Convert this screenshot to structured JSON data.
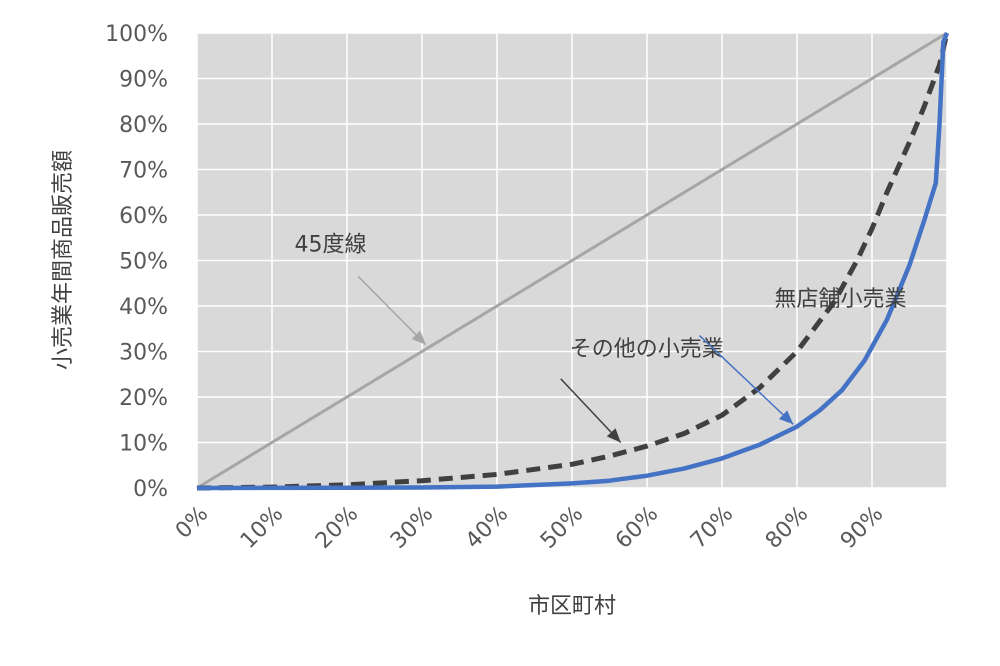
{
  "chart_data": {
    "type": "line",
    "xlabel": "市区町村",
    "ylabel": "小売業年間商品販売額",
    "xlim": [
      0,
      1
    ],
    "ylim": [
      0,
      1
    ],
    "x_ticks": [
      "0%",
      "10%",
      "20%",
      "30%",
      "40%",
      "50%",
      "60%",
      "70%",
      "80%",
      "90%"
    ],
    "y_ticks": [
      "0%",
      "10%",
      "20%",
      "30%",
      "40%",
      "50%",
      "60%",
      "70%",
      "80%",
      "90%",
      "100%"
    ],
    "grid": true,
    "series": [
      {
        "key": "line45",
        "color": "#a6a6a6",
        "style": "solid",
        "points": [
          [
            0,
            0
          ],
          [
            1,
            1
          ]
        ]
      },
      {
        "key": "other",
        "color": "#404040",
        "style": "dashed",
        "points": [
          [
            0,
            0
          ],
          [
            0.1,
            0.002
          ],
          [
            0.2,
            0.007
          ],
          [
            0.3,
            0.016
          ],
          [
            0.4,
            0.03
          ],
          [
            0.5,
            0.052
          ],
          [
            0.55,
            0.07
          ],
          [
            0.6,
            0.092
          ],
          [
            0.65,
            0.12
          ],
          [
            0.7,
            0.16
          ],
          [
            0.75,
            0.22
          ],
          [
            0.8,
            0.3
          ],
          [
            0.85,
            0.41
          ],
          [
            0.88,
            0.5
          ],
          [
            0.9,
            0.57
          ],
          [
            0.92,
            0.65
          ],
          [
            0.95,
            0.76
          ],
          [
            0.97,
            0.84
          ],
          [
            0.99,
            0.93
          ],
          [
            1.0,
            1.0
          ]
        ]
      },
      {
        "key": "nonstore",
        "color": "#4472c4",
        "style": "solid",
        "points": [
          [
            0,
            0
          ],
          [
            0.2,
            0.0005
          ],
          [
            0.3,
            0.001
          ],
          [
            0.4,
            0.003
          ],
          [
            0.5,
            0.01
          ],
          [
            0.55,
            0.016
          ],
          [
            0.6,
            0.027
          ],
          [
            0.65,
            0.043
          ],
          [
            0.7,
            0.065
          ],
          [
            0.75,
            0.095
          ],
          [
            0.8,
            0.135
          ],
          [
            0.83,
            0.17
          ],
          [
            0.86,
            0.215
          ],
          [
            0.89,
            0.28
          ],
          [
            0.92,
            0.37
          ],
          [
            0.95,
            0.49
          ],
          [
            0.97,
            0.59
          ],
          [
            0.985,
            0.67
          ],
          [
            0.99,
            0.8
          ],
          [
            0.995,
            0.98
          ],
          [
            1.0,
            1.0
          ]
        ]
      }
    ],
    "annotations": [
      {
        "key": "line45",
        "text": "45度線",
        "label_at": [
          0.13,
          0.52
        ],
        "from": [
          0.215,
          0.465
        ],
        "to": [
          0.305,
          0.315
        ],
        "color": "#a6a6a6"
      },
      {
        "key": "other",
        "text": "その他の小売業",
        "label_at": [
          0.497,
          0.29
        ],
        "from": [
          0.485,
          0.24
        ],
        "to": [
          0.565,
          0.1
        ],
        "color": "#404040"
      },
      {
        "key": "nonstore",
        "text": "無店舗小売業",
        "label_at": [
          0.77,
          0.4
        ],
        "from": [
          0.67,
          0.335
        ],
        "to": [
          0.795,
          0.14
        ],
        "color": "#4472c4"
      }
    ]
  }
}
